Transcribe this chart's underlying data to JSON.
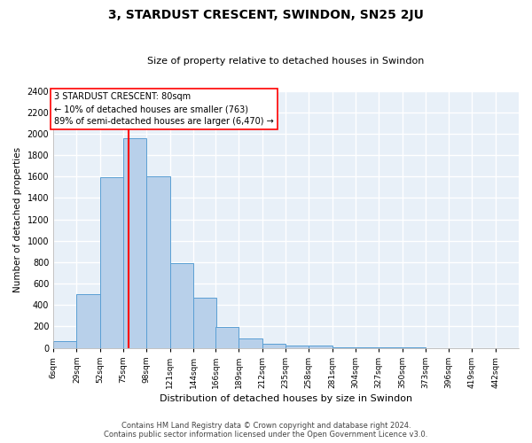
{
  "title": "3, STARDUST CRESCENT, SWINDON, SN25 2JU",
  "subtitle": "Size of property relative to detached houses in Swindon",
  "xlabel": "Distribution of detached houses by size in Swindon",
  "ylabel": "Number of detached properties",
  "bar_color": "#b8d0ea",
  "bar_edge_color": "#5a9fd4",
  "background_color": "#e8f0f8",
  "grid_color": "#ffffff",
  "red_line_x": 80,
  "annotation_text": "3 STARDUST CRESCENT: 80sqm\n← 10% of detached houses are smaller (763)\n89% of semi-detached houses are larger (6,470) →",
  "footer_line1": "Contains HM Land Registry data © Crown copyright and database right 2024.",
  "footer_line2": "Contains public sector information licensed under the Open Government Licence v3.0.",
  "bins": [
    6,
    29,
    52,
    75,
    98,
    121,
    144,
    166,
    189,
    212,
    235,
    258,
    281,
    304,
    327,
    350,
    373,
    396,
    419,
    442,
    465
  ],
  "counts": [
    60,
    500,
    1590,
    1960,
    1600,
    790,
    470,
    195,
    90,
    35,
    25,
    18,
    5,
    3,
    2,
    2,
    0,
    0,
    0,
    0
  ],
  "ylim": [
    0,
    2400
  ],
  "yticks": [
    0,
    200,
    400,
    600,
    800,
    1000,
    1200,
    1400,
    1600,
    1800,
    2000,
    2200,
    2400
  ]
}
